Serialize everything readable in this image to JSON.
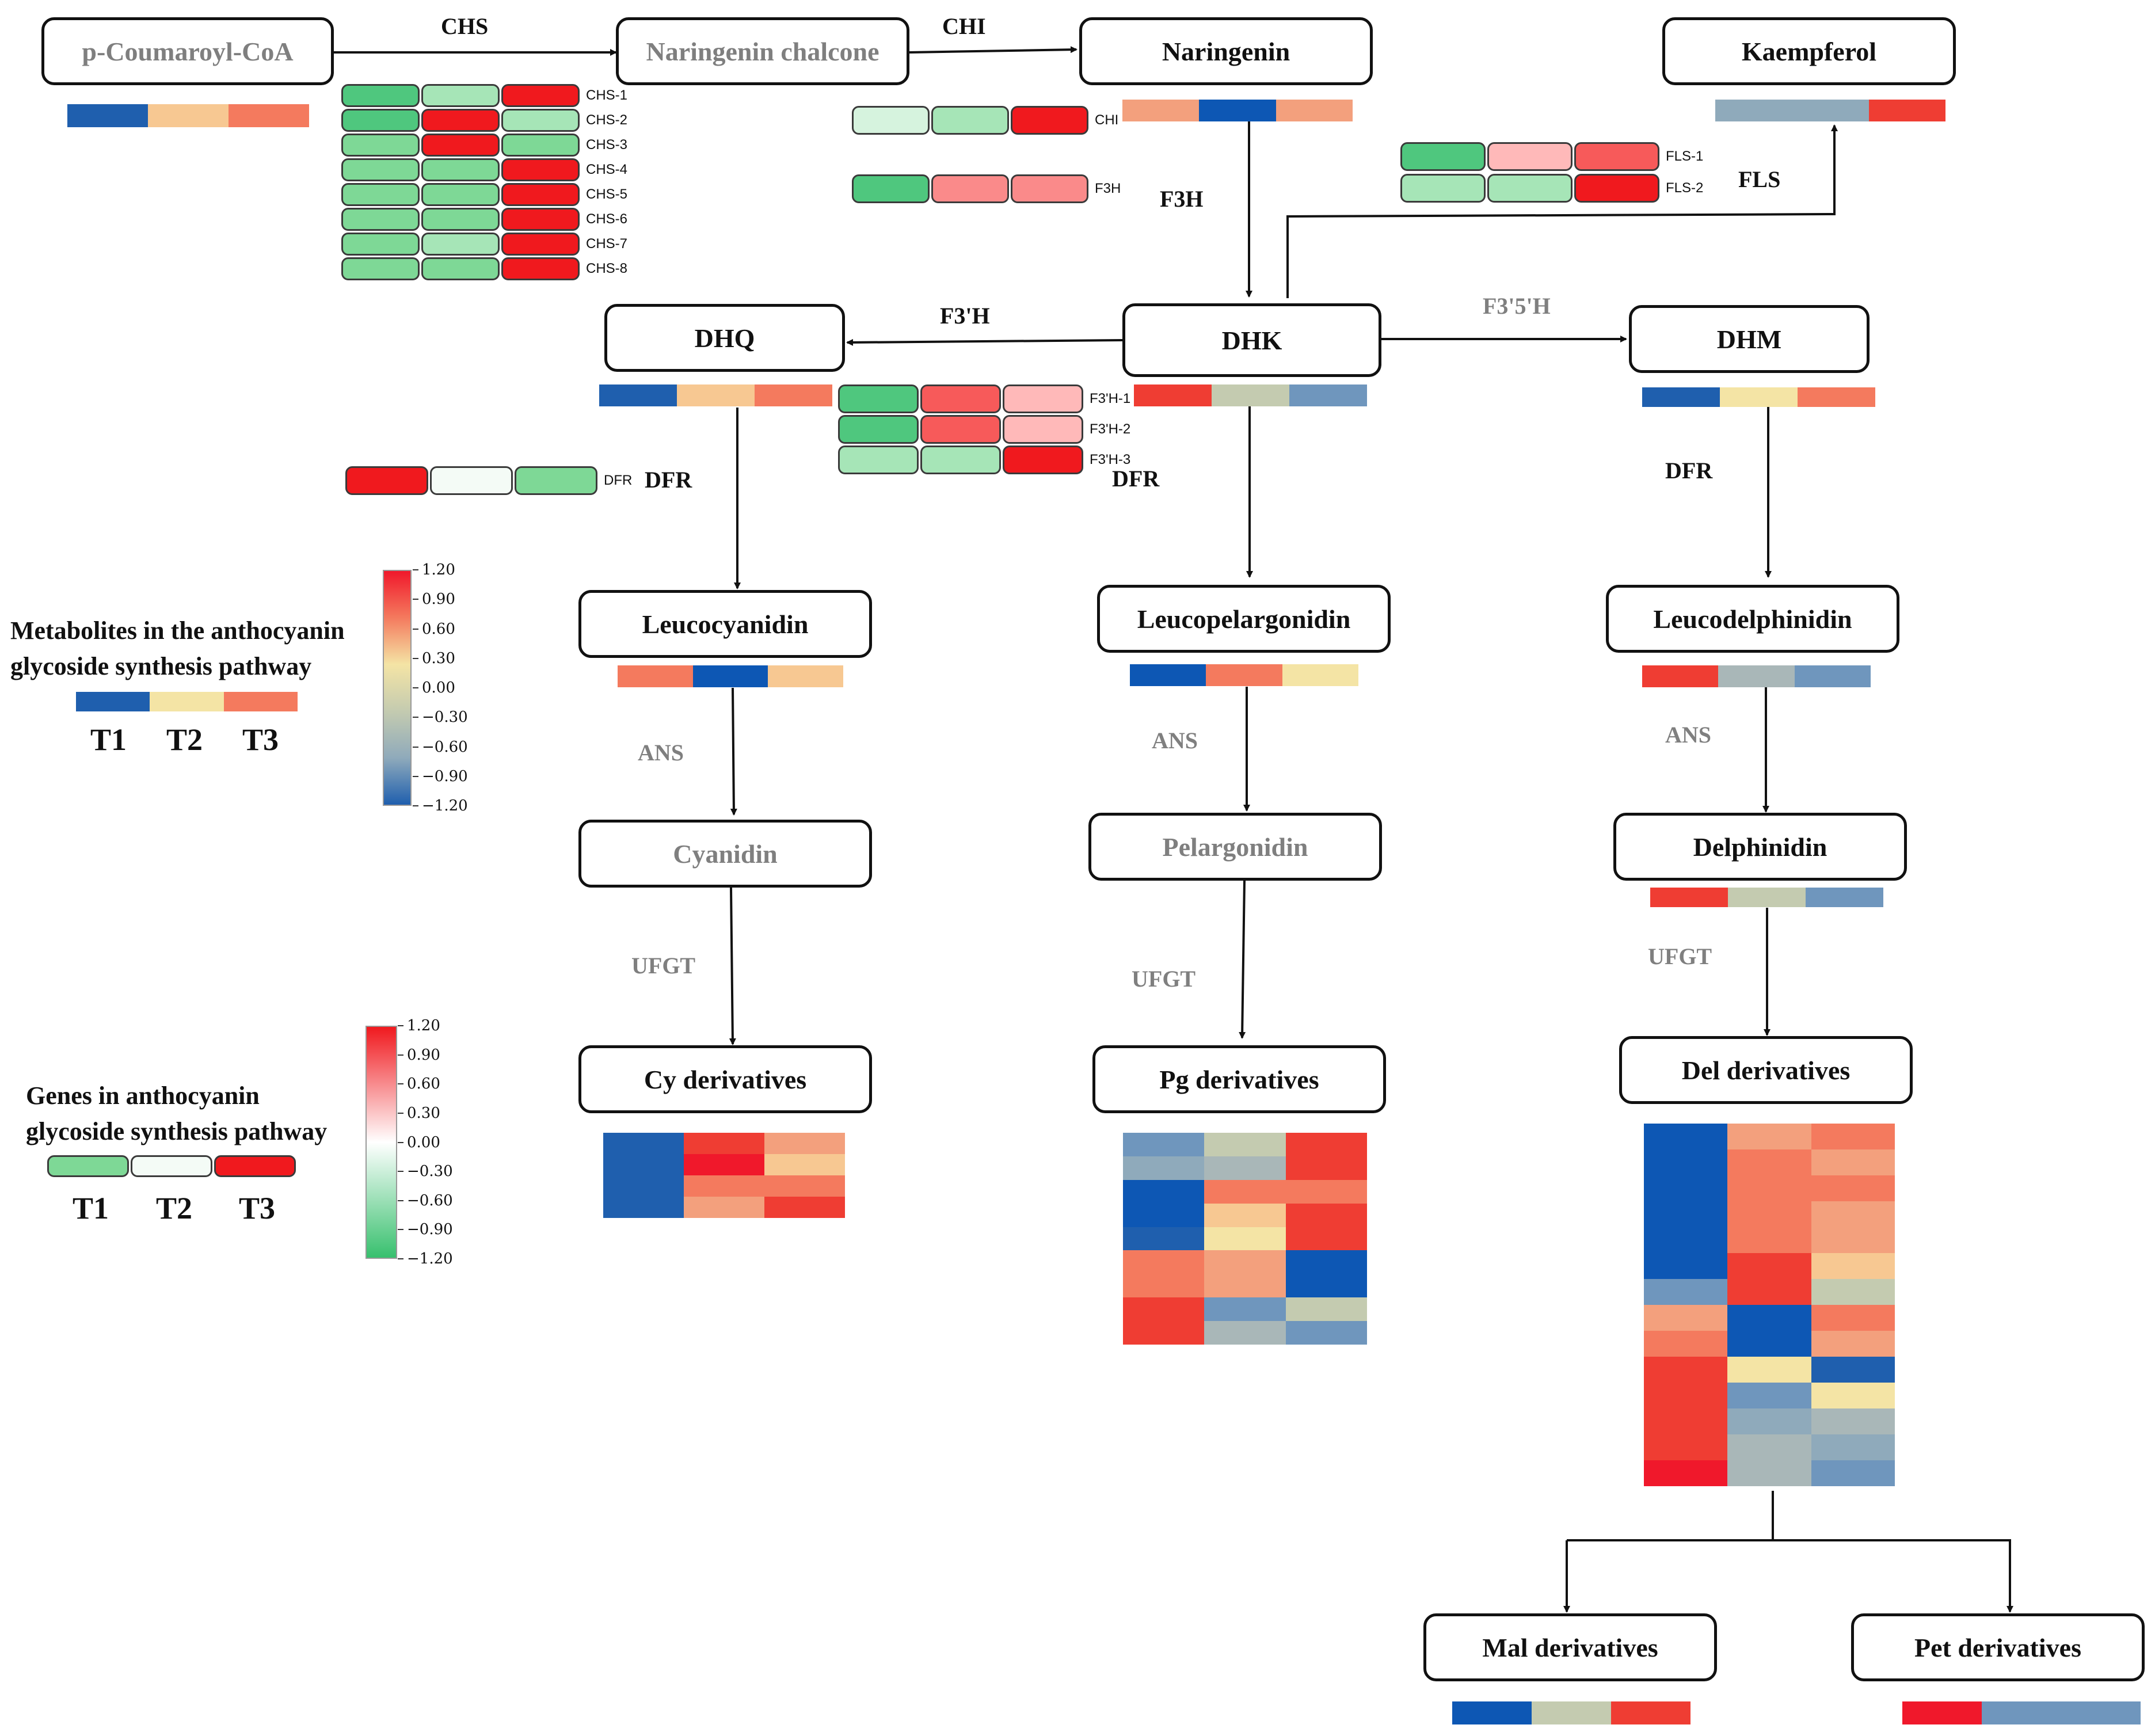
{
  "palette": {
    "m_blue": "#1f5fae",
    "m_dblue": "#0d57b4",
    "m_steel": "#6f96bd",
    "m_greyblue": "#8faabb",
    "m_grey": "#a9b7b8",
    "m_sage": "#c4cbb0",
    "m_cream": "#f4e4a5",
    "m_peach": "#f7c892",
    "m_salmon": "#f3a07d",
    "m_coral": "#f47a5e",
    "m_red": "#ef3d33",
    "m_bred": "#f0182b",
    "g_green": "#4fc77e",
    "g_mgreen": "#7ed896",
    "g_lgreen": "#a6e5b7",
    "g_vlgreen": "#d6f3de",
    "g_white": "#f4fbf6",
    "g_pink": "#ffb9b9",
    "g_lred": "#fa8a8a",
    "g_mred": "#f75a5a",
    "g_red": "#f0191e"
  },
  "nodes": {
    "coumaroyl": "p-Coumaroyl-CoA",
    "chalcone": "Naringenin chalcone",
    "naringenin": "Naringenin",
    "kaempferol": "Kaempferol",
    "dhq": "DHQ",
    "dhk": "DHK",
    "dhm": "DHM",
    "leucocyanidin": "Leucocyanidin",
    "leucopelargonidin": "Leucopelargonidin",
    "leucodelphinidin": "Leucodelphinidin",
    "cyanidin": "Cyanidin",
    "pelargonidin": "Pelargonidin",
    "delphinidin": "Delphinidin",
    "cy_deriv": "Cy derivatives",
    "pg_deriv": "Pg derivatives",
    "del_deriv": "Del derivatives",
    "mal_deriv": "Mal derivatives",
    "pet_deriv": "Pet derivatives"
  },
  "enzymes": {
    "chs": "CHS",
    "chi": "CHI",
    "f3h": "F3H",
    "fls": "FLS",
    "f3ph": "F3'H",
    "f35h": "F3'5'H",
    "dfr_left": "DFR",
    "dfr_mid": "DFR",
    "dfr_right": "DFR",
    "ans_left": "ANS",
    "ans_mid": "ANS",
    "ans_right": "ANS",
    "ufgt_left": "UFGT",
    "ufgt_mid": "UFGT",
    "ufgt_right": "UFGT"
  },
  "metabolite_strips": {
    "coumaroyl": [
      "m_blue",
      "m_peach",
      "m_coral"
    ],
    "naringenin": [
      "m_salmon",
      "m_dblue",
      "m_salmon"
    ],
    "kaempferol": [
      "m_greyblue",
      "m_greyblue",
      "m_red"
    ],
    "dhq": [
      "m_blue",
      "m_peach",
      "m_coral"
    ],
    "dhk": [
      "m_red",
      "m_sage",
      "m_steel"
    ],
    "dhm": [
      "m_blue",
      "m_cream",
      "m_coral"
    ],
    "leucocyanidin": [
      "m_coral",
      "m_dblue",
      "m_peach"
    ],
    "leucopelargonidin": [
      "m_dblue",
      "m_coral",
      "m_cream"
    ],
    "leucodelphinidin": [
      "m_red",
      "m_grey",
      "m_steel"
    ],
    "delphinidin": [
      "m_red",
      "m_sage",
      "m_steel"
    ],
    "mal_deriv": [
      "m_dblue",
      "m_sage",
      "m_red"
    ],
    "pet_deriv": [
      "m_bred",
      "m_steel",
      "m_steel"
    ]
  },
  "gene_groups": {
    "chs": [
      {
        "name": "CHS-1",
        "cells": [
          "g_green",
          "g_lgreen",
          "g_red"
        ]
      },
      {
        "name": "CHS-2",
        "cells": [
          "g_green",
          "g_red",
          "g_lgreen"
        ]
      },
      {
        "name": "CHS-3",
        "cells": [
          "g_mgreen",
          "g_red",
          "g_mgreen"
        ]
      },
      {
        "name": "CHS-4",
        "cells": [
          "g_mgreen",
          "g_mgreen",
          "g_red"
        ]
      },
      {
        "name": "CHS-5",
        "cells": [
          "g_mgreen",
          "g_mgreen",
          "g_red"
        ]
      },
      {
        "name": "CHS-6",
        "cells": [
          "g_mgreen",
          "g_mgreen",
          "g_red"
        ]
      },
      {
        "name": "CHS-7",
        "cells": [
          "g_mgreen",
          "g_lgreen",
          "g_red"
        ]
      },
      {
        "name": "CHS-8",
        "cells": [
          "g_mgreen",
          "g_mgreen",
          "g_red"
        ]
      }
    ],
    "chi": [
      {
        "name": "CHI",
        "cells": [
          "g_vlgreen",
          "g_lgreen",
          "g_red"
        ]
      }
    ],
    "f3h": [
      {
        "name": "F3H",
        "cells": [
          "g_green",
          "g_lred",
          "g_lred"
        ]
      }
    ],
    "fls": [
      {
        "name": "FLS-1",
        "cells": [
          "g_green",
          "g_pink",
          "g_mred"
        ]
      },
      {
        "name": "FLS-2",
        "cells": [
          "g_lgreen",
          "g_lgreen",
          "g_red"
        ]
      }
    ],
    "f3ph": [
      {
        "name": "F3'H-1",
        "cells": [
          "g_green",
          "g_mred",
          "g_pink"
        ]
      },
      {
        "name": "F3'H-2",
        "cells": [
          "g_green",
          "g_mred",
          "g_pink"
        ]
      },
      {
        "name": "F3'H-3",
        "cells": [
          "g_lgreen",
          "g_lgreen",
          "g_red"
        ]
      }
    ],
    "dfr": [
      {
        "name": "DFR",
        "cells": [
          "g_red",
          "g_white",
          "g_mgreen"
        ]
      }
    ]
  },
  "heatmaps": {
    "cy": [
      [
        "m_blue",
        "m_red",
        "m_salmon"
      ],
      [
        "m_blue",
        "m_bred",
        "m_peach"
      ],
      [
        "m_blue",
        "m_coral",
        "m_coral"
      ],
      [
        "m_blue",
        "m_salmon",
        "m_red"
      ]
    ],
    "pg": [
      [
        "m_steel",
        "m_sage",
        "m_red"
      ],
      [
        "m_greyblue",
        "m_grey",
        "m_red"
      ],
      [
        "m_dblue",
        "m_coral",
        "m_coral"
      ],
      [
        "m_dblue",
        "m_peach",
        "m_red"
      ],
      [
        "m_blue",
        "m_cream",
        "m_red"
      ],
      [
        "m_coral",
        "m_salmon",
        "m_dblue"
      ],
      [
        "m_coral",
        "m_salmon",
        "m_dblue"
      ],
      [
        "m_red",
        "m_steel",
        "m_sage"
      ],
      [
        "m_red",
        "m_grey",
        "m_steel"
      ]
    ],
    "del": [
      [
        "m_dblue",
        "m_salmon",
        "m_coral"
      ],
      [
        "m_dblue",
        "m_coral",
        "m_salmon"
      ],
      [
        "m_dblue",
        "m_coral",
        "m_coral"
      ],
      [
        "m_dblue",
        "m_coral",
        "m_salmon"
      ],
      [
        "m_dblue",
        "m_coral",
        "m_salmon"
      ],
      [
        "m_dblue",
        "m_red",
        "m_peach"
      ],
      [
        "m_steel",
        "m_red",
        "m_sage"
      ],
      [
        "m_salmon",
        "m_dblue",
        "m_coral"
      ],
      [
        "m_coral",
        "m_dblue",
        "m_salmon"
      ],
      [
        "m_red",
        "m_cream",
        "m_blue"
      ],
      [
        "m_red",
        "m_steel",
        "m_cream"
      ],
      [
        "m_red",
        "m_greyblue",
        "m_grey"
      ],
      [
        "m_red",
        "m_grey",
        "m_greyblue"
      ],
      [
        "m_bred",
        "m_grey",
        "m_steel"
      ]
    ]
  },
  "legend_metabolites": {
    "title_line1": "Metabolites in the anthocyanin",
    "title_line2": "glycoside synthesis pathway",
    "swatches": [
      "m_blue",
      "m_cream",
      "m_coral"
    ],
    "labels": [
      "T1",
      "T2",
      "T3"
    ],
    "scale_ticks": [
      "1.20",
      "0.90",
      "0.60",
      "0.30",
      "0.00",
      "−0.30",
      "−0.60",
      "−0.90",
      "−1.20"
    ],
    "scale_colors": [
      "#f0182b",
      "#f47a5e",
      "#f4e4a5",
      "#c4cbb0",
      "#8faabb",
      "#1f5fae"
    ]
  },
  "legend_genes": {
    "title_line1": "Genes in anthocyanin",
    "title_line2": "glycoside synthesis pathway",
    "swatches": [
      "g_mgreen",
      "g_white",
      "g_red"
    ],
    "labels": [
      "T1",
      "T2",
      "T3"
    ],
    "scale_ticks": [
      "1.20",
      "0.90",
      "0.60",
      "0.30",
      "0.00",
      "−0.30",
      "−0.60",
      "−0.90",
      "−1.20"
    ],
    "scale_colors": [
      "#f0191e",
      "#ffffff",
      "#38c06e"
    ]
  }
}
